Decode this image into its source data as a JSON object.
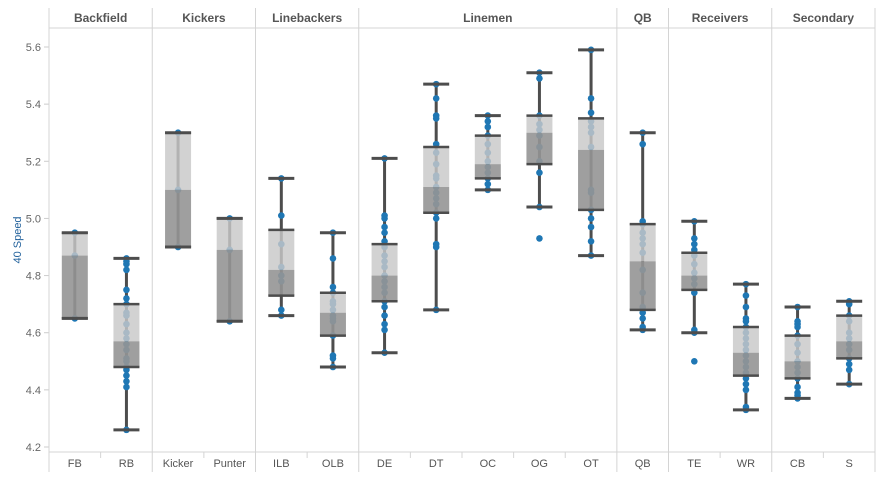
{
  "chart_data": {
    "type": "box",
    "title": "",
    "ylabel": "40 Speed",
    "xlabel": "",
    "ylim": [
      4.2,
      5.6
    ],
    "yticks": [
      "4.2",
      "4.4",
      "4.6",
      "4.8",
      "5.0",
      "5.2",
      "5.4",
      "5.6"
    ],
    "grid": false,
    "colors": {
      "points": "#1f77b4",
      "upper_box": "#c8c8c8",
      "lower_box": "#959595",
      "whisker": "#4d4d4d"
    },
    "groups": [
      {
        "name": "Backfield",
        "positions": [
          {
            "label": "FB",
            "whisker_low": 4.65,
            "q1": 4.65,
            "median": 4.87,
            "q3": 4.95,
            "whisker_high": 4.95,
            "points": [
              4.95,
              4.87,
              4.65
            ]
          },
          {
            "label": "RB",
            "whisker_low": 4.26,
            "q1": 4.48,
            "median": 4.57,
            "q3": 4.7,
            "whisker_high": 4.86,
            "points": [
              4.86,
              4.85,
              4.84,
              4.82,
              4.75,
              4.72,
              4.7,
              4.67,
              4.66,
              4.63,
              4.6,
              4.58,
              4.56,
              4.54,
              4.51,
              4.5,
              4.48,
              4.47,
              4.45,
              4.43,
              4.41,
              4.26
            ]
          }
        ]
      },
      {
        "name": "Kickers",
        "positions": [
          {
            "label": "Kicker",
            "whisker_low": 4.9,
            "q1": 4.9,
            "median": 5.1,
            "q3": 5.3,
            "whisker_high": 5.3,
            "points": [
              5.3,
              5.1,
              4.9
            ]
          },
          {
            "label": "Punter",
            "whisker_low": 4.64,
            "q1": 4.64,
            "median": 4.89,
            "q3": 5.0,
            "whisker_high": 5.0,
            "points": [
              5.0,
              4.89,
              4.64
            ]
          }
        ]
      },
      {
        "name": "Linebackers",
        "positions": [
          {
            "label": "ILB",
            "whisker_low": 4.66,
            "q1": 4.73,
            "median": 4.82,
            "q3": 4.96,
            "whisker_high": 5.14,
            "points": [
              5.14,
              5.01,
              4.91,
              4.83,
              4.8,
              4.78,
              4.68,
              4.66
            ]
          },
          {
            "label": "OLB",
            "whisker_low": 4.48,
            "q1": 4.59,
            "median": 4.67,
            "q3": 4.74,
            "whisker_high": 4.95,
            "points": [
              4.95,
              4.86,
              4.76,
              4.74,
              4.71,
              4.7,
              4.68,
              4.66,
              4.65,
              4.64,
              4.59,
              4.52,
              4.51,
              4.48
            ]
          }
        ]
      },
      {
        "name": "Linemen",
        "positions": [
          {
            "label": "DE",
            "whisker_low": 4.53,
            "q1": 4.71,
            "median": 4.8,
            "q3": 4.91,
            "whisker_high": 5.21,
            "points": [
              5.21,
              5.01,
              5.0,
              4.97,
              4.95,
              4.92,
              4.9,
              4.87,
              4.85,
              4.83,
              4.8,
              4.78,
              4.76,
              4.74,
              4.71,
              4.69,
              4.66,
              4.63,
              4.61,
              4.53
            ]
          },
          {
            "label": "DT",
            "whisker_low": 4.68,
            "q1": 5.02,
            "median": 5.11,
            "q3": 5.25,
            "whisker_high": 5.47,
            "points": [
              5.47,
              5.42,
              5.36,
              5.35,
              5.26,
              5.23,
              5.19,
              5.15,
              5.14,
              5.11,
              5.09,
              5.07,
              5.05,
              5.02,
              5.0,
              4.91,
              4.9,
              4.68
            ]
          },
          {
            "label": "OC",
            "whisker_low": 5.1,
            "q1": 5.14,
            "median": 5.19,
            "q3": 5.29,
            "whisker_high": 5.36,
            "points": [
              5.36,
              5.34,
              5.32,
              5.29,
              5.26,
              5.23,
              5.2,
              5.18,
              5.16,
              5.14,
              5.12,
              5.1
            ]
          },
          {
            "label": "OG",
            "whisker_low": 5.04,
            "q1": 5.19,
            "median": 5.3,
            "q3": 5.36,
            "whisker_high": 5.51,
            "points": [
              5.51,
              5.49,
              5.36,
              5.33,
              5.31,
              5.29,
              5.25,
              5.2,
              5.16,
              5.04,
              4.93
            ]
          },
          {
            "label": "OT",
            "whisker_low": 4.87,
            "q1": 5.03,
            "median": 5.24,
            "q3": 5.35,
            "whisker_high": 5.59,
            "points": [
              5.59,
              5.42,
              5.37,
              5.34,
              5.32,
              5.3,
              5.25,
              5.1,
              5.09,
              5.03,
              5.0,
              4.97,
              4.92,
              4.87
            ]
          }
        ]
      },
      {
        "name": "QB",
        "positions": [
          {
            "label": "QB",
            "whisker_low": 4.61,
            "q1": 4.68,
            "median": 4.85,
            "q3": 4.98,
            "whisker_high": 5.3,
            "points": [
              5.3,
              5.26,
              4.99,
              4.98,
              4.95,
              4.93,
              4.91,
              4.88,
              4.82,
              4.74,
              4.69,
              4.67,
              4.65,
              4.62,
              4.61
            ]
          }
        ]
      },
      {
        "name": "Receivers",
        "positions": [
          {
            "label": "TE",
            "whisker_low": 4.6,
            "q1": 4.75,
            "median": 4.8,
            "q3": 4.88,
            "whisker_high": 4.99,
            "points": [
              4.99,
              4.93,
              4.91,
              4.89,
              4.87,
              4.84,
              4.81,
              4.79,
              4.77,
              4.74,
              4.61,
              4.6,
              4.5
            ]
          },
          {
            "label": "WR",
            "whisker_low": 4.33,
            "q1": 4.45,
            "median": 4.53,
            "q3": 4.62,
            "whisker_high": 4.77,
            "points": [
              4.77,
              4.73,
              4.69,
              4.65,
              4.64,
              4.62,
              4.6,
              4.58,
              4.56,
              4.54,
              4.52,
              4.5,
              4.48,
              4.46,
              4.44,
              4.42,
              4.4,
              4.34,
              4.33
            ]
          }
        ]
      },
      {
        "name": "Secondary",
        "positions": [
          {
            "label": "CB",
            "whisker_low": 4.37,
            "q1": 4.44,
            "median": 4.5,
            "q3": 4.59,
            "whisker_high": 4.69,
            "points": [
              4.69,
              4.64,
              4.63,
              4.62,
              4.59,
              4.56,
              4.53,
              4.5,
              4.48,
              4.46,
              4.44,
              4.41,
              4.39,
              4.38,
              4.37
            ]
          },
          {
            "label": "S",
            "whisker_low": 4.42,
            "q1": 4.51,
            "median": 4.57,
            "q3": 4.66,
            "whisker_high": 4.71,
            "points": [
              4.71,
              4.7,
              4.66,
              4.64,
              4.6,
              4.58,
              4.56,
              4.54,
              4.51,
              4.49,
              4.47,
              4.42
            ]
          }
        ]
      }
    ]
  }
}
